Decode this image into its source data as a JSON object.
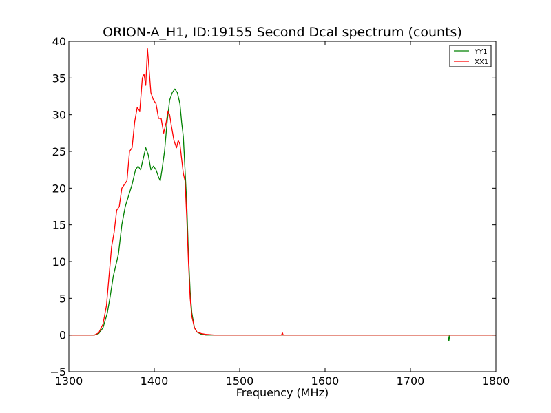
{
  "chart_data": {
    "type": "line",
    "title": "ORION-A_H1, ID:19155 Second Dcal spectrum (counts)",
    "xlabel": "Frequency (MHz)",
    "ylabel": "",
    "xlim": [
      1300,
      1800
    ],
    "ylim": [
      -5,
      40
    ],
    "x_ticks": [
      1300,
      1400,
      1500,
      1600,
      1700,
      1800
    ],
    "y_ticks": [
      -5,
      0,
      5,
      10,
      15,
      20,
      25,
      30,
      35,
      40
    ],
    "y_tick_labels": [
      "−5",
      "0",
      "5",
      "10",
      "15",
      "20",
      "25",
      "30",
      "35",
      "40"
    ],
    "grid": false,
    "legend_position": "top-right",
    "series": [
      {
        "name": "YY1",
        "color": "#008000",
        "points": [
          [
            1300,
            0
          ],
          [
            1330,
            0
          ],
          [
            1335,
            0.2
          ],
          [
            1340,
            1
          ],
          [
            1345,
            3
          ],
          [
            1348,
            5
          ],
          [
            1352,
            8
          ],
          [
            1358,
            11
          ],
          [
            1362,
            15
          ],
          [
            1366,
            17.5
          ],
          [
            1370,
            19
          ],
          [
            1374,
            20.5
          ],
          [
            1378,
            22.5
          ],
          [
            1381,
            23
          ],
          [
            1384,
            22.5
          ],
          [
            1387,
            24
          ],
          [
            1390,
            25.5
          ],
          [
            1393,
            24.5
          ],
          [
            1396,
            22.5
          ],
          [
            1399,
            23
          ],
          [
            1402,
            22.5
          ],
          [
            1405,
            21.5
          ],
          [
            1407,
            21
          ],
          [
            1409,
            22.5
          ],
          [
            1412,
            25
          ],
          [
            1415,
            29
          ],
          [
            1418,
            32
          ],
          [
            1421,
            33
          ],
          [
            1424,
            33.5
          ],
          [
            1427,
            33
          ],
          [
            1430,
            31.5
          ],
          [
            1432,
            29
          ],
          [
            1434,
            27
          ],
          [
            1436,
            22.5
          ],
          [
            1438,
            18
          ],
          [
            1440,
            11
          ],
          [
            1442,
            6
          ],
          [
            1444,
            3
          ],
          [
            1447,
            1
          ],
          [
            1450,
            0.4
          ],
          [
            1455,
            0.1
          ],
          [
            1460,
            0
          ],
          [
            1550,
            0
          ],
          [
            1740,
            0
          ],
          [
            1744,
            0
          ],
          [
            1745,
            -0.8
          ],
          [
            1746,
            0
          ],
          [
            1800,
            0
          ]
        ]
      },
      {
        "name": "XX1",
        "color": "#ff0000",
        "points": [
          [
            1300,
            0
          ],
          [
            1330,
            0
          ],
          [
            1335,
            0.3
          ],
          [
            1340,
            1.5
          ],
          [
            1344,
            4
          ],
          [
            1347,
            8
          ],
          [
            1350,
            12
          ],
          [
            1353,
            14
          ],
          [
            1356,
            17
          ],
          [
            1359,
            17.5
          ],
          [
            1362,
            20
          ],
          [
            1365,
            20.5
          ],
          [
            1368,
            21
          ],
          [
            1371,
            25
          ],
          [
            1374,
            25.5
          ],
          [
            1377,
            29
          ],
          [
            1380,
            31
          ],
          [
            1383,
            30.5
          ],
          [
            1386,
            35
          ],
          [
            1388,
            35.5
          ],
          [
            1390,
            34
          ],
          [
            1392,
            39
          ],
          [
            1394,
            36
          ],
          [
            1396,
            33
          ],
          [
            1399,
            32
          ],
          [
            1402,
            31.5
          ],
          [
            1405,
            29.5
          ],
          [
            1408,
            29.5
          ],
          [
            1411,
            27.5
          ],
          [
            1414,
            29
          ],
          [
            1416,
            30.5
          ],
          [
            1418,
            30
          ],
          [
            1420,
            28.5
          ],
          [
            1423,
            26.5
          ],
          [
            1426,
            25.5
          ],
          [
            1428,
            26.5
          ],
          [
            1430,
            26
          ],
          [
            1432,
            24
          ],
          [
            1434,
            22
          ],
          [
            1436,
            21
          ],
          [
            1438,
            16
          ],
          [
            1440,
            10
          ],
          [
            1442,
            5
          ],
          [
            1444,
            2.5
          ],
          [
            1447,
            1
          ],
          [
            1450,
            0.4
          ],
          [
            1455,
            0.2
          ],
          [
            1460,
            0.1
          ],
          [
            1470,
            0
          ],
          [
            1549,
            0
          ],
          [
            1550,
            0.3
          ],
          [
            1551,
            0
          ],
          [
            1800,
            0
          ]
        ]
      }
    ]
  }
}
